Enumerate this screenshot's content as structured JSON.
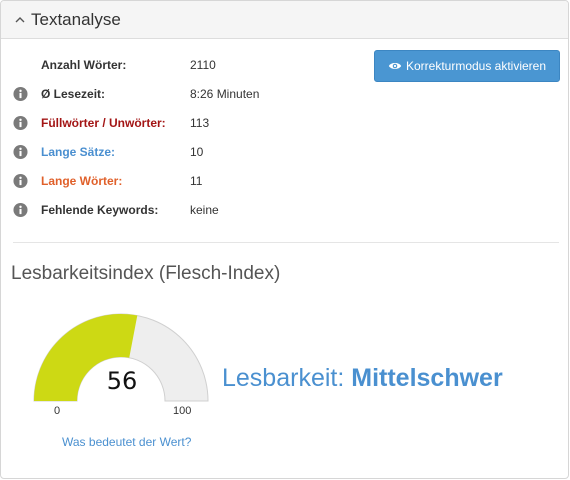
{
  "header": {
    "title": "Textanalyse",
    "toggle_icon": "chevron-up-icon"
  },
  "stats": [
    {
      "label": "Anzahl Wörter:",
      "value": "2110",
      "color": "#333333",
      "has_info": false
    },
    {
      "label": "Ø Lesezeit:",
      "value": "8:26 Minuten",
      "color": "#333333",
      "has_info": true
    },
    {
      "label": "Füllwörter / Unwörter:",
      "value": "113",
      "color": "#a31515",
      "has_info": true
    },
    {
      "label": "Lange Sätze:",
      "value": "10",
      "color": "#4a8fd0",
      "has_info": true
    },
    {
      "label": "Lange Wörter:",
      "value": "11",
      "color": "#e0602a",
      "has_info": true
    },
    {
      "label": "Fehlende Keywords:",
      "value": "keine",
      "color": "#333333",
      "has_info": true
    }
  ],
  "button": {
    "label": "Korrekturmodus aktivieren",
    "icon": "eye-icon",
    "color": "#4a96d2"
  },
  "readability": {
    "section_title": "Lesbarkeitsindex (Flesch-Index)",
    "gauge": {
      "value": 56,
      "min": 0,
      "max": 100,
      "value_label": "56",
      "min_label": "0",
      "max_label": "100",
      "fill_color": "#cdd914",
      "track_color": "#eeeeee"
    },
    "prefix": "Lesbarkeit: ",
    "level": "Mittelschwer",
    "help_link": "Was bedeutet der Wert?"
  }
}
